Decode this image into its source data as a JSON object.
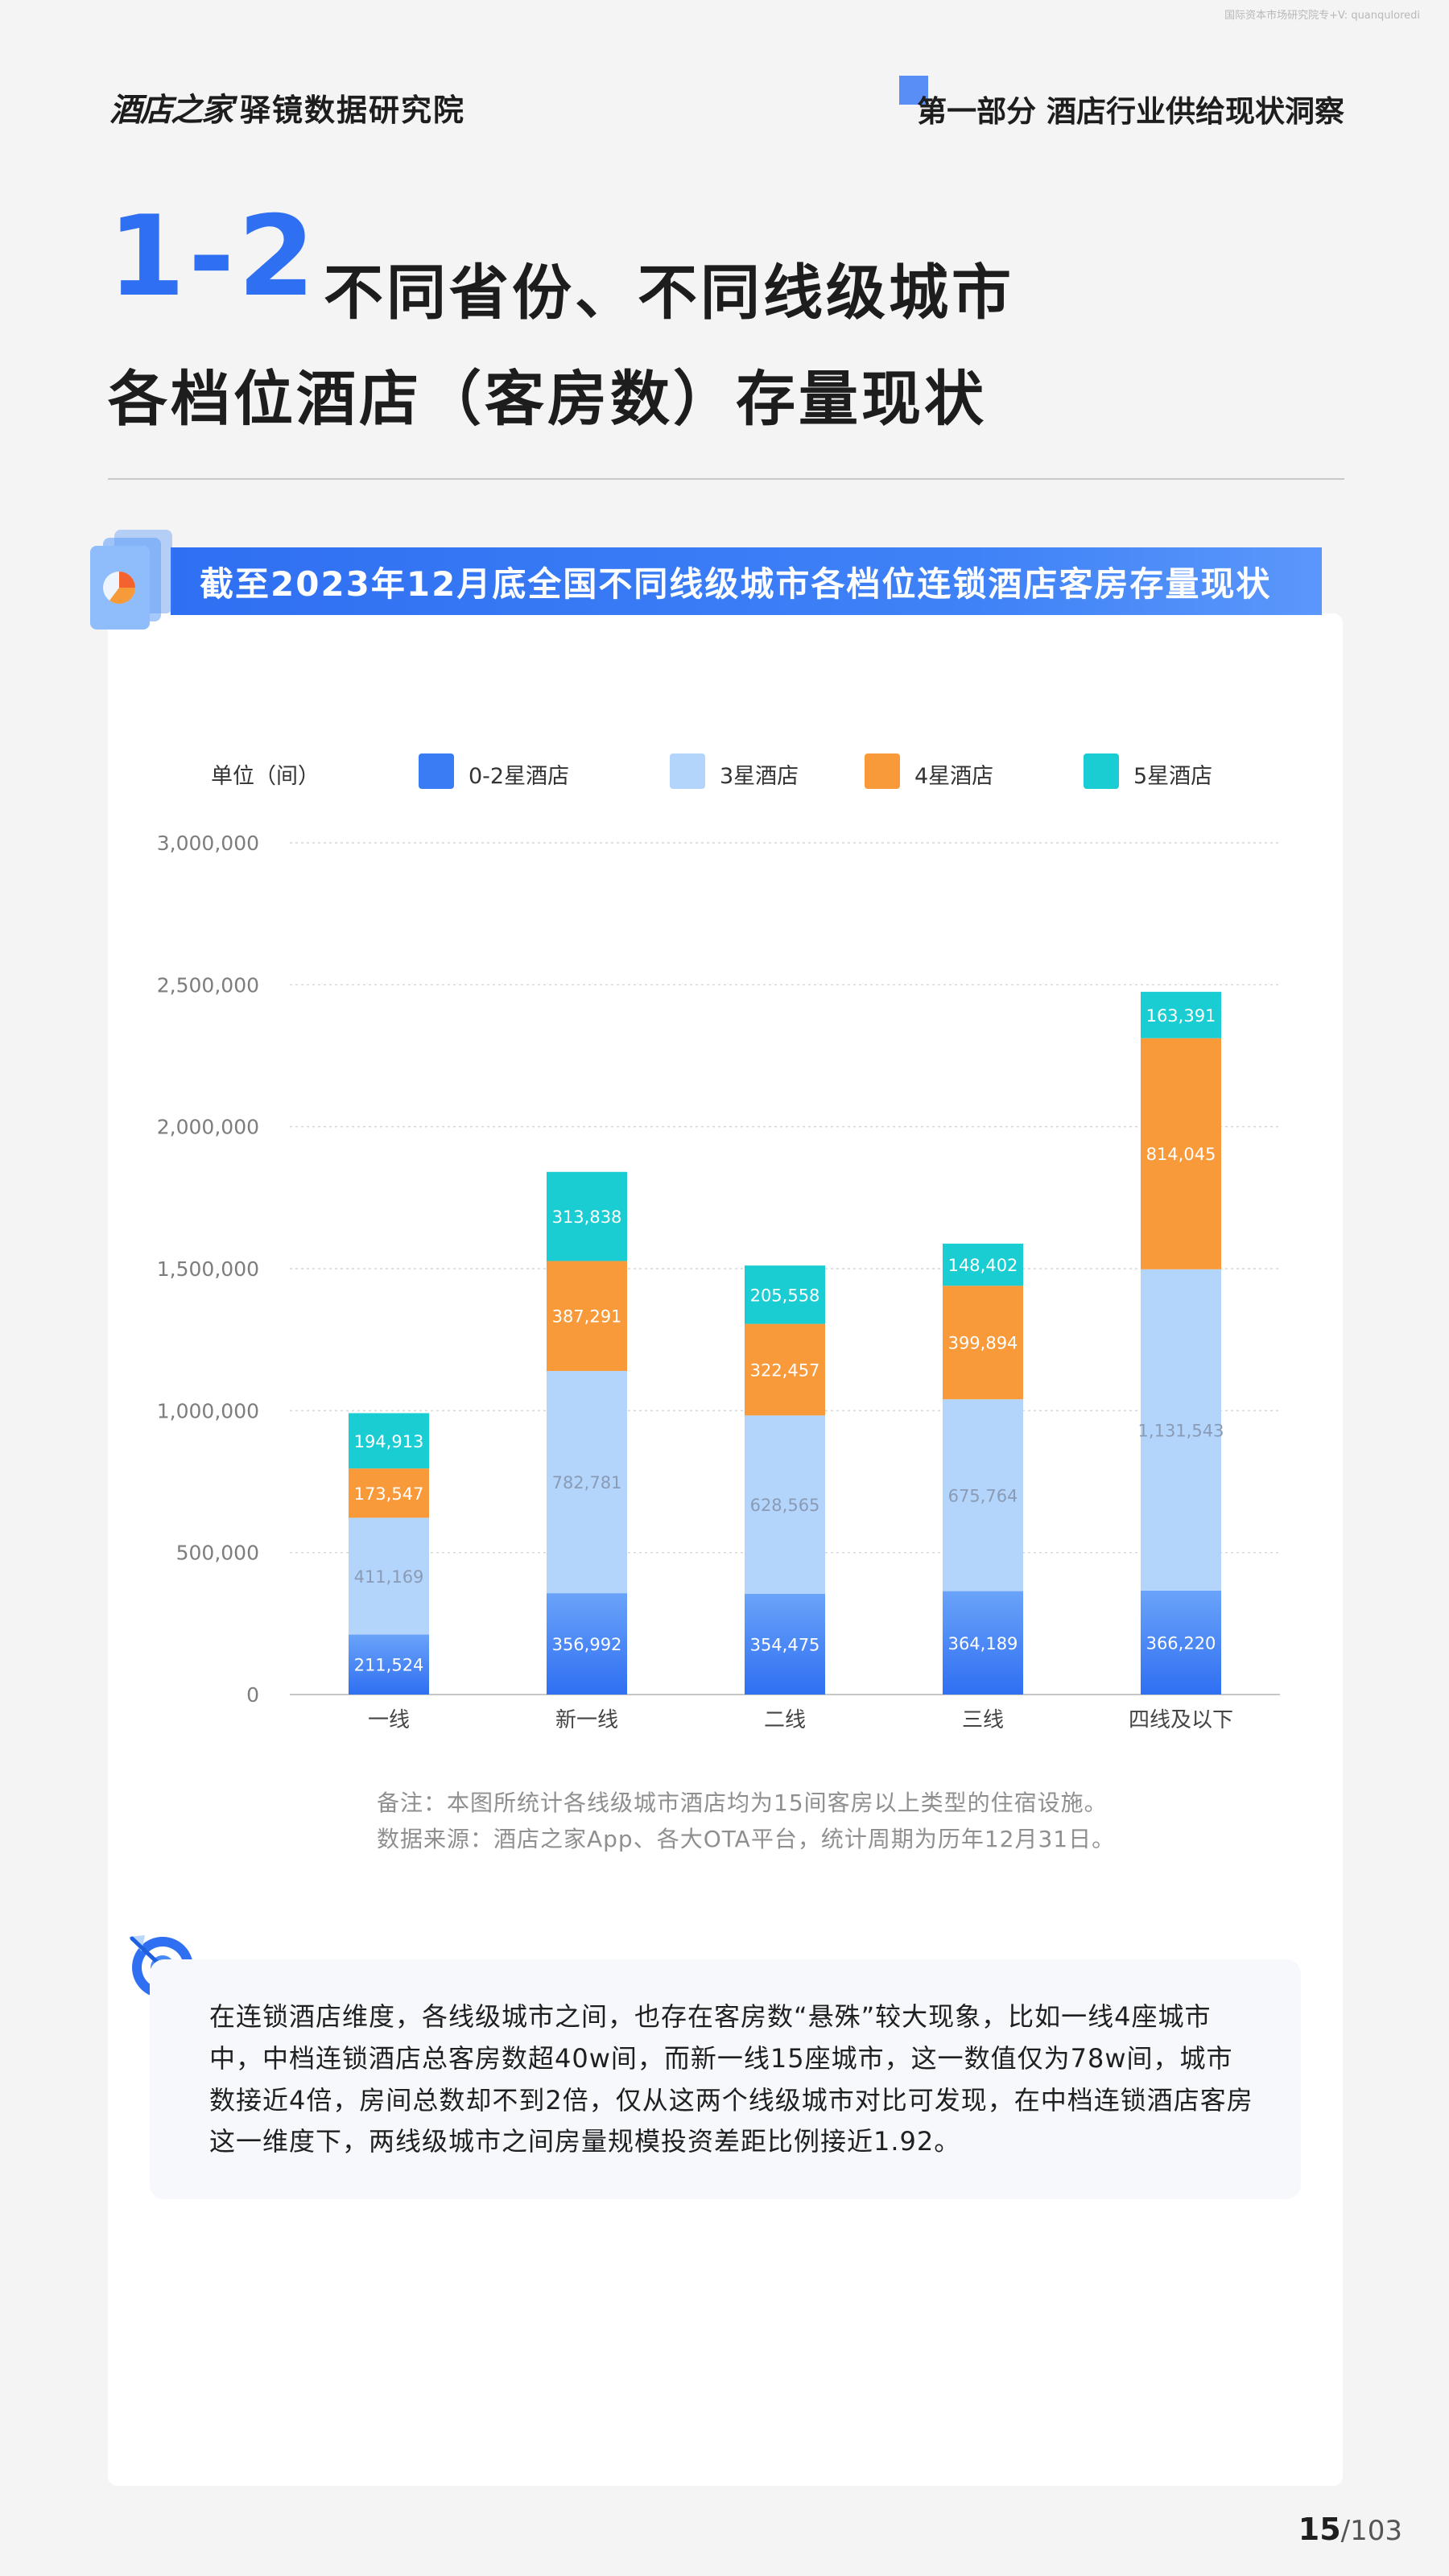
{
  "watermark": "国际资本市场研究院专+V: quanquloredi",
  "header": {
    "brand": "酒店之家",
    "brand_sub": "驿镜数据研究院",
    "section": "第一部分 酒店行业供给现状洞察"
  },
  "title": {
    "number": "1-2",
    "line1": "不同省份、不同线级城市",
    "line2": "各档位酒店（客房数）存量现状"
  },
  "banner": "截至2023年12月底全国不同线级城市各档位连锁酒店客房存量现状",
  "chart_data": {
    "type": "bar",
    "stacked": true,
    "unit_label": "单位（间）",
    "categories": [
      "一线",
      "新一线",
      "二线",
      "三线",
      "四线及以下"
    ],
    "series": [
      {
        "name": "0-2星酒店",
        "values": [
          211524,
          356992,
          354475,
          364189,
          366220
        ],
        "value_labels": [
          "211,524",
          "356,992",
          "354,475",
          "364,189",
          "366,220"
        ],
        "color": "#3a7cf4"
      },
      {
        "name": "3星酒店",
        "values": [
          411169,
          782781,
          628565,
          675764,
          1131543
        ],
        "value_labels": [
          "411,169",
          "782,781",
          "628,565",
          "675,764",
          "1,131,543"
        ],
        "color": "#b4d5fb"
      },
      {
        "name": "4星酒店",
        "values": [
          173547,
          387291,
          322457,
          399894,
          814045
        ],
        "value_labels": [
          "173,547",
          "387,291",
          "322,457",
          "399,894",
          "814,045"
        ],
        "color": "#f99a3a"
      },
      {
        "name": "5星酒店",
        "values": [
          194913,
          313838,
          205558,
          148402,
          163391
        ],
        "value_labels": [
          "194,913",
          "313,838",
          "205,558",
          "148,402",
          "163,391"
        ],
        "color": "#19cdd2"
      }
    ],
    "ylim": [
      0,
      3000000
    ],
    "yticks": [
      0,
      500000,
      1000000,
      1500000,
      2000000,
      2500000,
      3000000
    ],
    "ytick_labels": [
      "0",
      "500,000",
      "1,000,000",
      "1,500,000",
      "2,000,000",
      "2,500,000",
      "3,000,000"
    ],
    "grid": true,
    "legend_position": "top"
  },
  "notes": {
    "line1": "备注：本图所统计各线级城市酒店均为15间客房以上类型的住宿设施。",
    "line2": "数据来源：酒店之家App、各大OTA平台，统计周期为历年12月31日。"
  },
  "summary": "在连锁酒店维度，各线级城市之间，也存在客房数“悬殊”较大现象，比如一线4座城市中，中档连锁酒店总客房数超40w间，而新一线15座城市，这一数值仅为78w间，城市数接近4倍，房间总数却不到2倍，仅从这两个线级城市对比可发现，在中档连锁酒店客房这一维度下，两线级城市之间房量规模投资差距比例接近1.92。",
  "page": {
    "current": "15",
    "total": "/103"
  },
  "icons": {
    "chart": "chart-stack-icon",
    "target": "target-icon"
  }
}
